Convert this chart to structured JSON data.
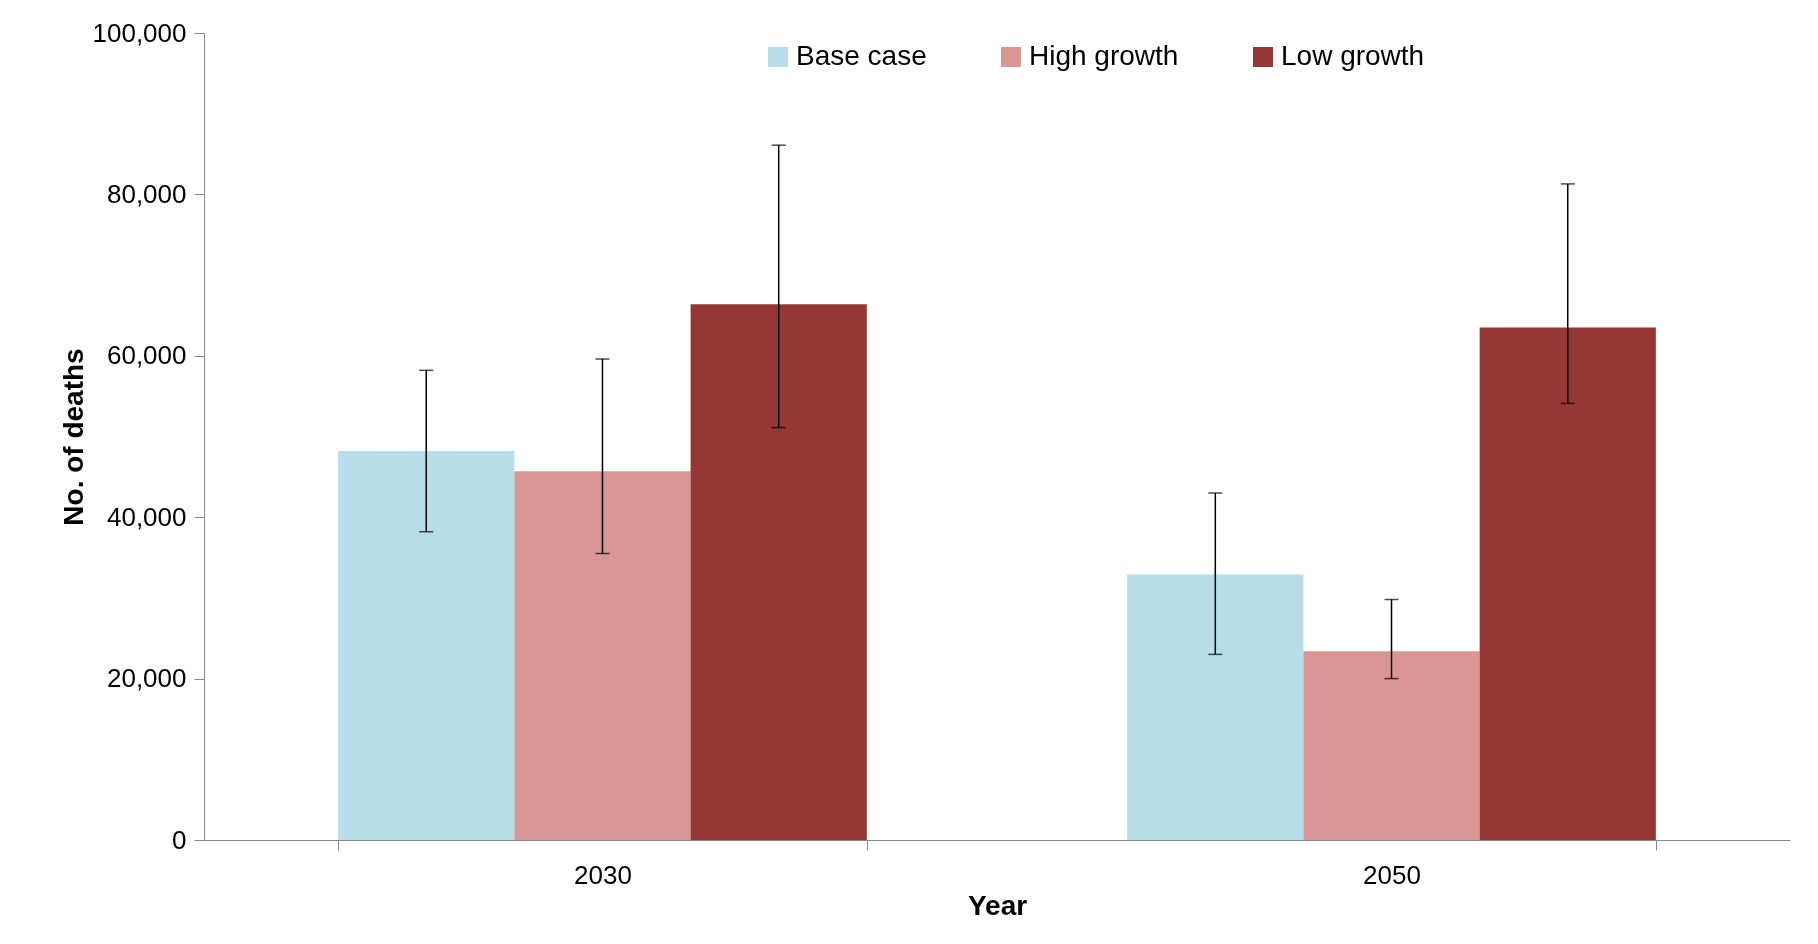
{
  "chart_data": {
    "type": "bar",
    "xlabel": "Year",
    "ylabel": "No. of deaths",
    "categories": [
      "2030",
      "2050"
    ],
    "series": [
      {
        "name": "Base case",
        "color": "#b7dde8",
        "values": [
          48200,
          32900
        ],
        "errors": [
          [
            38200,
            58200
          ],
          [
            23000,
            43000
          ]
        ]
      },
      {
        "name": "High growth",
        "color": "#d99694",
        "values": [
          45700,
          23400
        ],
        "errors": [
          [
            35500,
            59600
          ],
          [
            20000,
            29800
          ]
        ]
      },
      {
        "name": "Low growth",
        "color": "#953735",
        "values": [
          66400,
          63500
        ],
        "errors": [
          [
            51100,
            86100
          ],
          [
            54100,
            81300
          ]
        ]
      }
    ],
    "ylim": [
      0,
      100000
    ],
    "yticks": [
      0,
      {
        "value": 20000,
        "label": "20,000"
      },
      {
        "value": 40000,
        "label": "40,000"
      },
      {
        "value": 60000,
        "label": "60,000"
      },
      {
        "value": 80000,
        "label": "80,000"
      },
      {
        "value": 100000,
        "label": "100,000"
      }
    ],
    "grid": false,
    "legend": "top"
  }
}
